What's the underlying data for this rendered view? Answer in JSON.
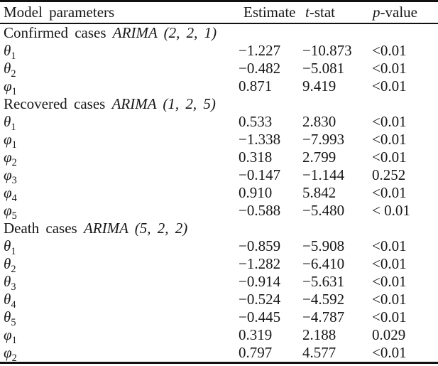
{
  "header": {
    "col_model": "Model parameters",
    "col_estimate": "Estimate",
    "col_tstat_italic": "t",
    "col_tstat_rest": "-stat",
    "col_pvalue_italic": "p",
    "col_pvalue_rest": "-value"
  },
  "sections": [
    {
      "title": "Confirmed cases",
      "model": "ARIMA (2, 2, 1)",
      "rows": [
        {
          "symbol": "θ",
          "sub": "1",
          "estimate": "−1.227",
          "tstat": "−10.873",
          "pvalue": "<0.01"
        },
        {
          "symbol": "θ",
          "sub": "2",
          "estimate": "−0.482",
          "tstat": "−5.081",
          "pvalue": "<0.01"
        },
        {
          "symbol": "φ",
          "sub": "1",
          "estimate": "0.871",
          "tstat": "9.419",
          "pvalue": "<0.01"
        }
      ]
    },
    {
      "title": "Recovered cases",
      "model": "ARIMA (1, 2, 5)",
      "rows": [
        {
          "symbol": "θ",
          "sub": "1",
          "estimate": "0.533",
          "tstat": "2.830",
          "pvalue": "<0.01"
        },
        {
          "symbol": "φ",
          "sub": "1",
          "estimate": "−1.338",
          "tstat": "−7.993",
          "pvalue": "<0.01"
        },
        {
          "symbol": "φ",
          "sub": "2",
          "estimate": "0.318",
          "tstat": "2.799",
          "pvalue": "<0.01"
        },
        {
          "symbol": "φ",
          "sub": "3",
          "estimate": "−0.147",
          "tstat": "−1.144",
          "pvalue": "0.252"
        },
        {
          "symbol": "φ",
          "sub": "4",
          "estimate": "0.910",
          "tstat": "5.842",
          "pvalue": "<0.01"
        },
        {
          "symbol": "φ",
          "sub": "5",
          "estimate": "−0.588",
          "tstat": "−5.480",
          "pvalue": "< 0.01"
        }
      ]
    },
    {
      "title": "Death cases",
      "model": "ARIMA (5, 2, 2)",
      "rows": [
        {
          "symbol": "θ",
          "sub": "1",
          "estimate": "−0.859",
          "tstat": "−5.908",
          "pvalue": "<0.01"
        },
        {
          "symbol": "θ",
          "sub": "2",
          "estimate": "−1.282",
          "tstat": "−6.410",
          "pvalue": "<0.01"
        },
        {
          "symbol": "θ",
          "sub": "3",
          "estimate": "−0.914",
          "tstat": "−5.631",
          "pvalue": "<0.01"
        },
        {
          "symbol": "θ",
          "sub": "4",
          "estimate": "−0.524",
          "tstat": "−4.592",
          "pvalue": "<0.01"
        },
        {
          "symbol": "θ",
          "sub": "5",
          "estimate": "−0.445",
          "tstat": "−4.787",
          "pvalue": "<0.01"
        },
        {
          "symbol": "φ",
          "sub": "1",
          "estimate": "0.319",
          "tstat": "2.188",
          "pvalue": "0.029"
        },
        {
          "symbol": "φ",
          "sub": "2",
          "estimate": "0.797",
          "tstat": "4.577",
          "pvalue": "<0.01"
        }
      ]
    }
  ]
}
